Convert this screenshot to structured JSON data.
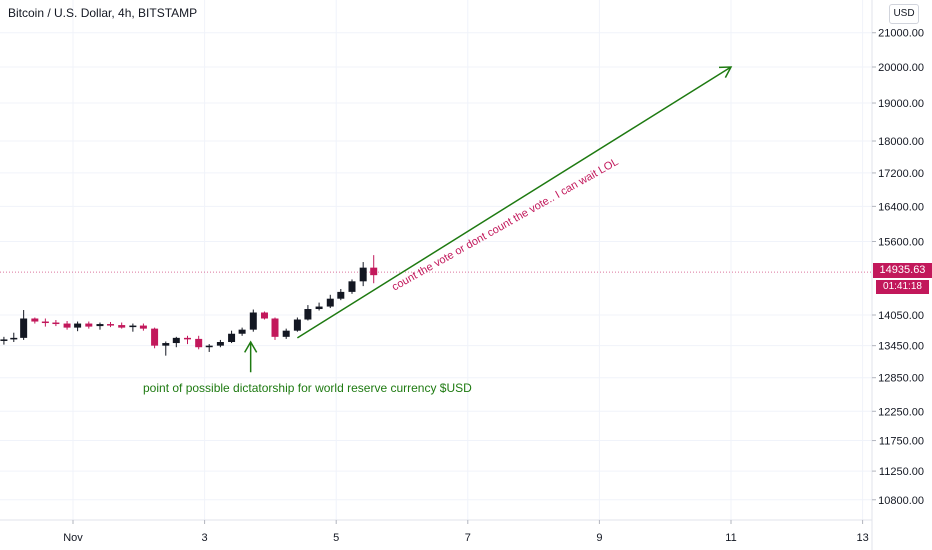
{
  "header": {
    "title": "Bitcoin / U.S. Dollar, 4h, BITSTAMP",
    "currency_button": "USD"
  },
  "price_tag": "14935.63",
  "timer_tag": "01:41:18",
  "annotations": {
    "note": "point of possible dictatorship for world reserve currency $USD",
    "rotated": "count the vote or dont count the vote.. I can wait LOL"
  },
  "colors": {
    "up": "#131722",
    "down": "#c2185b",
    "arrow": "#1e7a11",
    "grid": "#f0f3fa",
    "axis_text": "#131722",
    "price_line": "#c2185b"
  },
  "chart_data": {
    "type": "candlestick",
    "title": "Bitcoin / U.S. Dollar, 4h, BITSTAMP",
    "y_scale": "log",
    "y_ticks": [
      10800,
      11250,
      11750,
      12250,
      12850,
      13450,
      14050,
      14935.63,
      15600,
      16400,
      17200,
      18000,
      19000,
      20000,
      21000
    ],
    "y_tick_labels": [
      "10800.00",
      "11250.00",
      "11750.00",
      "12250.00",
      "12850.00",
      "13450.00",
      "14050.00",
      "",
      "15600.00",
      "16400.00",
      "17200.00",
      "18000.00",
      "19000.00",
      "20000.00",
      "21000.00"
    ],
    "x_tick_labels": [
      "Nov",
      "3",
      "5",
      "7",
      "9",
      "11",
      "13"
    ],
    "x_ticks_day": [
      1,
      3,
      5,
      7,
      9,
      11,
      13
    ],
    "last_price": 14935.63,
    "candles": [
      {
        "t": -0.05,
        "o": 13540,
        "h": 13620,
        "l": 13470,
        "c": 13570
      },
      {
        "t": 0.1,
        "o": 13570,
        "h": 13700,
        "l": 13520,
        "c": 13600
      },
      {
        "t": 0.25,
        "o": 13600,
        "h": 14150,
        "l": 13560,
        "c": 13980
      },
      {
        "t": 0.42,
        "o": 13980,
        "h": 14000,
        "l": 13880,
        "c": 13920
      },
      {
        "t": 0.58,
        "o": 13920,
        "h": 13980,
        "l": 13820,
        "c": 13900
      },
      {
        "t": 0.74,
        "o": 13900,
        "h": 13950,
        "l": 13830,
        "c": 13880
      },
      {
        "t": 0.91,
        "o": 13880,
        "h": 13930,
        "l": 13760,
        "c": 13800
      },
      {
        "t": 1.07,
        "o": 13800,
        "h": 13920,
        "l": 13730,
        "c": 13880
      },
      {
        "t": 1.24,
        "o": 13880,
        "h": 13920,
        "l": 13780,
        "c": 13820
      },
      {
        "t": 1.41,
        "o": 13830,
        "h": 13900,
        "l": 13760,
        "c": 13870
      },
      {
        "t": 1.57,
        "o": 13870,
        "h": 13910,
        "l": 13810,
        "c": 13850
      },
      {
        "t": 1.74,
        "o": 13850,
        "h": 13900,
        "l": 13780,
        "c": 13800
      },
      {
        "t": 1.91,
        "o": 13810,
        "h": 13880,
        "l": 13720,
        "c": 13840
      },
      {
        "t": 2.07,
        "o": 13840,
        "h": 13880,
        "l": 13740,
        "c": 13780
      },
      {
        "t": 2.24,
        "o": 13780,
        "h": 13800,
        "l": 13400,
        "c": 13450
      },
      {
        "t": 2.41,
        "o": 13450,
        "h": 13530,
        "l": 13260,
        "c": 13500
      },
      {
        "t": 2.57,
        "o": 13500,
        "h": 13620,
        "l": 13420,
        "c": 13600
      },
      {
        "t": 2.74,
        "o": 13600,
        "h": 13640,
        "l": 13480,
        "c": 13580
      },
      {
        "t": 2.91,
        "o": 13580,
        "h": 13640,
        "l": 13380,
        "c": 13420
      },
      {
        "t": 3.07,
        "o": 13420,
        "h": 13480,
        "l": 13330,
        "c": 13450
      },
      {
        "t": 3.24,
        "o": 13450,
        "h": 13560,
        "l": 13420,
        "c": 13520
      },
      {
        "t": 3.41,
        "o": 13520,
        "h": 13740,
        "l": 13500,
        "c": 13680
      },
      {
        "t": 3.57,
        "o": 13680,
        "h": 13800,
        "l": 13640,
        "c": 13760
      },
      {
        "t": 3.74,
        "o": 13760,
        "h": 14160,
        "l": 13720,
        "c": 14100
      },
      {
        "t": 3.91,
        "o": 14100,
        "h": 14120,
        "l": 13960,
        "c": 13980
      },
      {
        "t": 4.07,
        "o": 13980,
        "h": 14000,
        "l": 13560,
        "c": 13620
      },
      {
        "t": 4.24,
        "o": 13620,
        "h": 13780,
        "l": 13580,
        "c": 13740
      },
      {
        "t": 4.41,
        "o": 13740,
        "h": 14000,
        "l": 13720,
        "c": 13960
      },
      {
        "t": 4.57,
        "o": 13960,
        "h": 14250,
        "l": 13940,
        "c": 14170
      },
      {
        "t": 4.74,
        "o": 14170,
        "h": 14300,
        "l": 14140,
        "c": 14220
      },
      {
        "t": 4.91,
        "o": 14220,
        "h": 14460,
        "l": 14190,
        "c": 14380
      },
      {
        "t": 5.07,
        "o": 14380,
        "h": 14580,
        "l": 14350,
        "c": 14520
      },
      {
        "t": 5.24,
        "o": 14520,
        "h": 14780,
        "l": 14480,
        "c": 14740
      },
      {
        "t": 5.41,
        "o": 14740,
        "h": 15150,
        "l": 14640,
        "c": 15030
      },
      {
        "t": 5.57,
        "o": 15030,
        "h": 15300,
        "l": 14700,
        "c": 14870
      }
    ],
    "arrows": [
      {
        "from": {
          "t": 4.41,
          "price": 13600
        },
        "to": {
          "t": 11.0,
          "price": 20000
        }
      },
      {
        "from": {
          "t": 3.7,
          "price": 12950
        },
        "to": {
          "t": 3.7,
          "price": 13520
        }
      }
    ]
  }
}
